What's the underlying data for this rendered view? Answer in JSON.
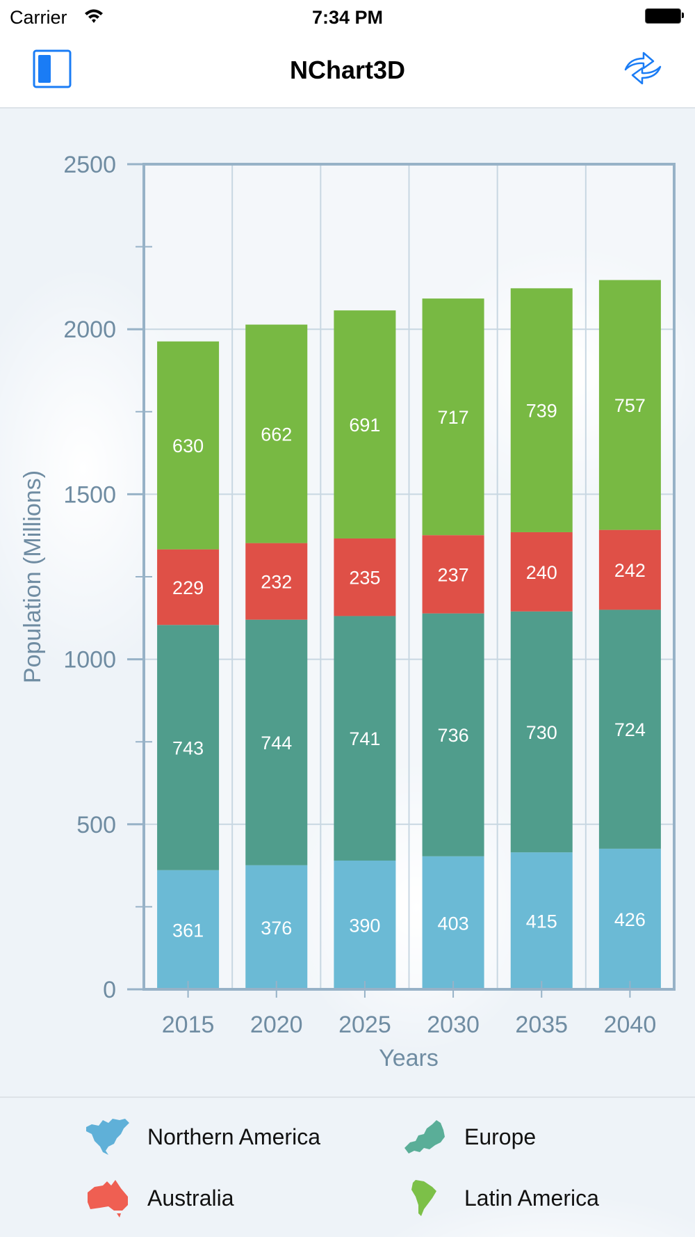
{
  "status_bar": {
    "carrier": "Carrier",
    "time": "7:34 PM",
    "wifi_icon": "wifi-icon",
    "battery_icon": "battery-icon"
  },
  "nav": {
    "title": "NChart3D",
    "left_button_icon": "sidebar-toggle-icon",
    "right_button_icon": "refresh-icon",
    "accent_color": "#1a7cf5"
  },
  "chart_data": {
    "type": "bar",
    "stacked": true,
    "title": "",
    "xlabel": "Years",
    "ylabel": "Population (Millions)",
    "ylim": [
      0,
      2500
    ],
    "yticks": [
      "0",
      "500",
      "1000",
      "1500",
      "2000",
      "2500"
    ],
    "categories": [
      "2015",
      "2020",
      "2025",
      "2030",
      "2035",
      "2040"
    ],
    "grid": true,
    "legend_position": "bottom",
    "series": [
      {
        "name": "Northern America",
        "color": "#6bbad5",
        "values": [
          361,
          376,
          390,
          403,
          415,
          426
        ]
      },
      {
        "name": "Europe",
        "color": "#509d8c",
        "values": [
          743,
          744,
          741,
          736,
          730,
          724
        ]
      },
      {
        "name": "Australia",
        "color": "#df5047",
        "values": [
          229,
          232,
          235,
          237,
          240,
          242
        ]
      },
      {
        "name": "Latin America",
        "color": "#78b943",
        "values": [
          630,
          662,
          691,
          717,
          739,
          757
        ]
      }
    ]
  },
  "legend": {
    "items": [
      {
        "label": "Northern America",
        "icon": "north-america-icon",
        "color": "#5fb0d8"
      },
      {
        "label": "Europe",
        "icon": "europe-icon",
        "color": "#5aae98"
      },
      {
        "label": "Australia",
        "icon": "australia-icon",
        "color": "#ef5f52"
      },
      {
        "label": "Latin America",
        "icon": "south-america-icon",
        "color": "#7cc048"
      }
    ]
  }
}
